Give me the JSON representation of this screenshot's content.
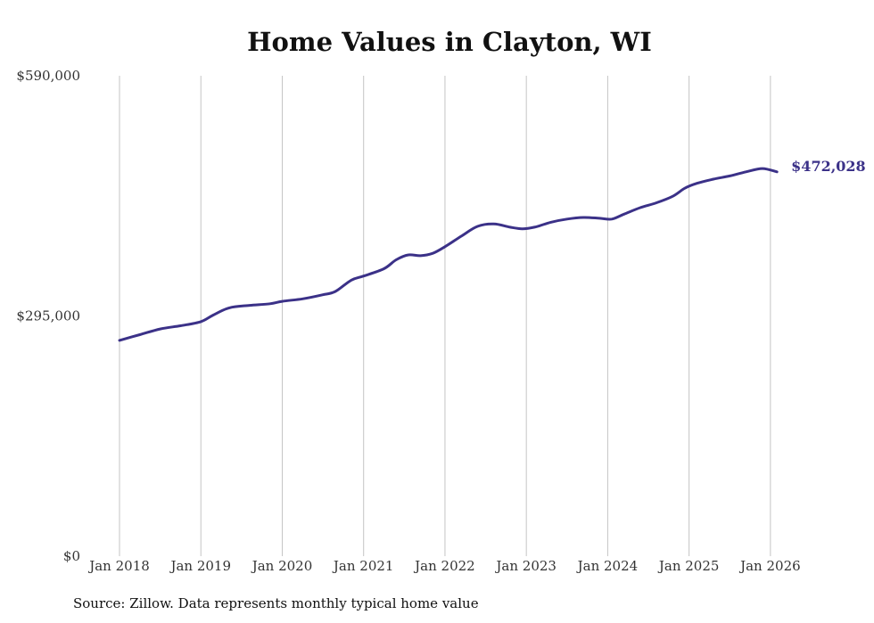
{
  "chart_data": {
    "type": "line",
    "title": "Home Values in Clayton, WI",
    "xlabel": "",
    "ylabel": "",
    "ylim": [
      0,
      590000
    ],
    "yticks": [
      {
        "value": 0,
        "label": "$0"
      },
      {
        "value": 295000,
        "label": "$295,000"
      },
      {
        "value": 590000,
        "label": "$590,000"
      }
    ],
    "xlim": [
      2018,
      2026.1
    ],
    "xticks": [
      {
        "value": 2018,
        "label": "Jan 2018"
      },
      {
        "value": 2019,
        "label": "Jan 2019"
      },
      {
        "value": 2020,
        "label": "Jan 2020"
      },
      {
        "value": 2021,
        "label": "Jan 2021"
      },
      {
        "value": 2022,
        "label": "Jan 2022"
      },
      {
        "value": 2023,
        "label": "Jan 2023"
      },
      {
        "value": 2024,
        "label": "Jan 2024"
      },
      {
        "value": 2025,
        "label": "Jan 2025"
      },
      {
        "value": 2026,
        "label": "Jan 2026"
      }
    ],
    "grid": "vertical",
    "series": [
      {
        "name": "Typical home value",
        "color": "#3b3188",
        "x": [
          2018.0,
          2018.25,
          2018.5,
          2018.75,
          2019.0,
          2019.15,
          2019.35,
          2019.6,
          2019.85,
          2020.0,
          2020.25,
          2020.5,
          2020.65,
          2020.85,
          2021.0,
          2021.25,
          2021.4,
          2021.55,
          2021.7,
          2021.85,
          2022.0,
          2022.2,
          2022.4,
          2022.6,
          2022.8,
          2022.95,
          2023.1,
          2023.3,
          2023.5,
          2023.7,
          2023.9,
          2024.05,
          2024.2,
          2024.4,
          2024.6,
          2024.8,
          2024.95,
          2025.1,
          2025.3,
          2025.5,
          2025.7,
          2025.9,
          2026.08
        ],
        "values": [
          265000,
          272000,
          279000,
          283000,
          288000,
          296000,
          305000,
          308000,
          310000,
          313000,
          316000,
          321000,
          325000,
          339000,
          344000,
          353000,
          364000,
          370000,
          369000,
          372000,
          380000,
          393000,
          405000,
          408000,
          404000,
          402000,
          404000,
          410000,
          414000,
          416000,
          415000,
          414000,
          420000,
          428000,
          434000,
          442000,
          452000,
          458000,
          463000,
          467000,
          472000,
          476000,
          472028
        ]
      }
    ],
    "end_label": "$472,028"
  },
  "footer": {
    "source": "Source: Zillow. Data represents monthly typical home value"
  }
}
